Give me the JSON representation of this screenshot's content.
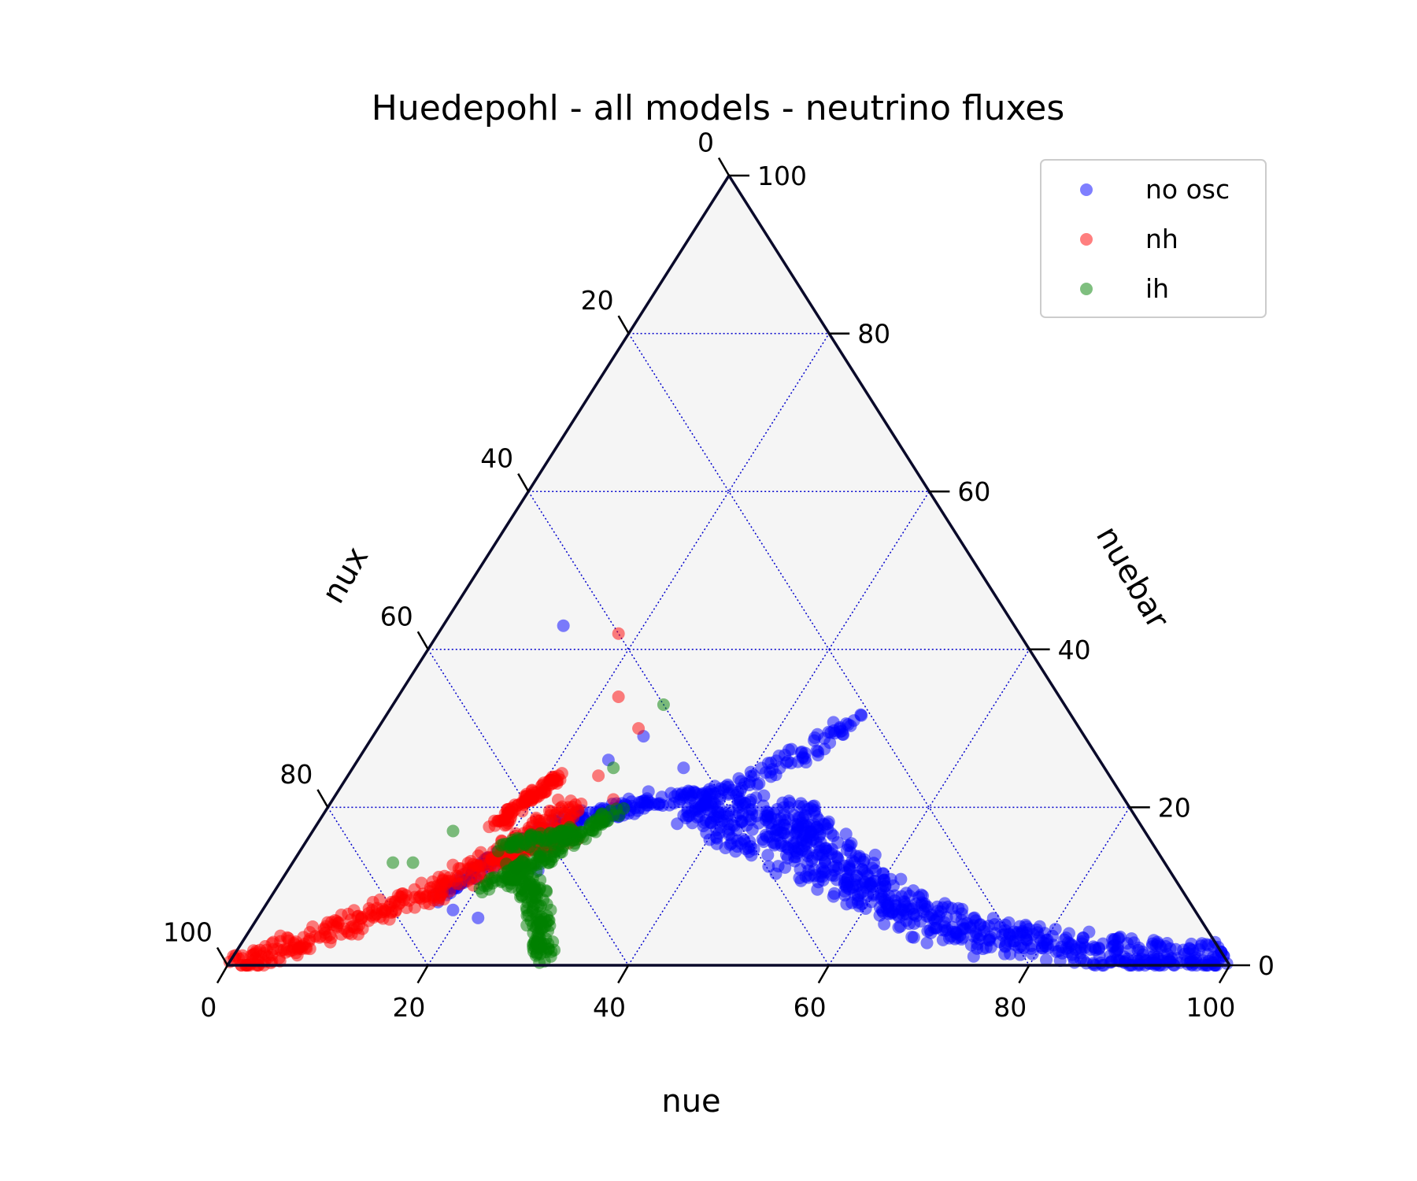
{
  "chart_data": {
    "type": "scatter",
    "subtype": "ternary",
    "title": "Huedepohl - all models - neutrino fluxes",
    "axes": {
      "bottom": {
        "label": "nue",
        "ticks": [
          "0",
          "20",
          "40",
          "60",
          "80",
          "100"
        ],
        "range": [
          0,
          100
        ]
      },
      "right": {
        "label": "nuebar",
        "ticks": [
          "0",
          "20",
          "40",
          "60",
          "80",
          "100"
        ],
        "range": [
          0,
          100
        ]
      },
      "left": {
        "label": "nux",
        "ticks": [
          "0",
          "20",
          "40",
          "60",
          "80",
          "100"
        ],
        "range": [
          0,
          100
        ]
      }
    },
    "grid": true,
    "grid_step": 20,
    "grid_color": "#0000cc",
    "background": "#f5f5f5",
    "legend": {
      "location": "top-right",
      "entries": [
        "no osc",
        "nh",
        "ih"
      ]
    },
    "series": [
      {
        "name": "no osc",
        "color": "#0000ff",
        "alpha": 0.5,
        "clusters": [
          {
            "kind": "band",
            "points": [
              [
                99,
                1,
                0
              ],
              [
                88,
                1,
                11
              ],
              [
                75,
                3,
                22
              ],
              [
                65,
                6,
                29
              ],
              [
                58,
                10,
                32
              ],
              [
                50,
                16,
                34
              ],
              [
                47,
                19,
                34
              ]
            ],
            "width": 4
          },
          {
            "kind": "band",
            "points": [
              [
                99,
                1,
                0
              ],
              [
                86,
                2,
                12
              ],
              [
                74,
                4,
                22
              ],
              [
                62,
                8,
                30
              ],
              [
                55,
                13,
                32
              ],
              [
                48,
                18,
                34
              ],
              [
                46,
                20,
                34
              ]
            ],
            "width": 3.5
          },
          {
            "kind": "band",
            "points": [
              [
                99,
                1,
                0
              ],
              [
                84,
                2,
                14
              ],
              [
                70,
                5,
                25
              ],
              [
                58,
                10,
                32
              ],
              [
                49,
                15,
                36
              ],
              [
                43,
                19,
                38
              ],
              [
                41,
                20,
                39
              ]
            ],
            "width": 3.5
          },
          {
            "kind": "band",
            "points": [
              [
                99,
                1,
                0
              ],
              [
                82,
                3,
                15
              ],
              [
                68,
                6,
                26
              ],
              [
                55,
                11,
                34
              ],
              [
                45,
                15,
                40
              ],
              [
                39,
                18,
                43
              ],
              [
                37,
                20,
                43
              ]
            ],
            "width": 3
          },
          {
            "kind": "band",
            "points": [
              [
                36,
                19,
                45
              ],
              [
                40,
                23,
                37
              ],
              [
                44,
                27,
                29
              ],
              [
                47,
                31,
                22
              ]
            ],
            "width": 2.5
          },
          {
            "kind": "band",
            "points": [
              [
                24,
                18,
                58
              ],
              [
                27,
                19,
                54
              ],
              [
                30,
                20,
                50
              ],
              [
                34,
                21,
                45
              ],
              [
                38,
                22,
                40
              ]
            ],
            "width": 2
          },
          {
            "kind": "band",
            "points": [
              [
                17,
                9,
                74
              ],
              [
                19,
                12,
                69
              ],
              [
                21,
                15,
                64
              ],
              [
                23,
                17,
                60
              ]
            ],
            "width": 1.5
          },
          {
            "kind": "band",
            "points": [
              [
                99,
                0.2,
                0.8
              ],
              [
                88,
                0.4,
                11.6
              ]
            ],
            "width": 1
          },
          {
            "kind": "points",
            "points": [
              [
                12,
                43,
                45
              ],
              [
                25,
                26,
                49
              ],
              [
                27,
                29,
                44
              ],
              [
                30,
                19,
                51
              ],
              [
                25,
                12,
                63
              ],
              [
                22,
                6,
                72
              ],
              [
                33,
                25,
                42
              ],
              [
                29,
                20,
                51
              ],
              [
                31,
                22,
                47
              ],
              [
                17,
                8,
                75
              ],
              [
                19,
                7,
                74
              ]
            ]
          }
        ]
      },
      {
        "name": "nh",
        "color": "#ff0000",
        "alpha": 0.5,
        "clusters": [
          {
            "kind": "band",
            "points": [
              [
                0.5,
                0.2,
                99.3
              ],
              [
                6,
                3,
                91
              ],
              [
                12,
                7,
                81
              ],
              [
                17,
                11,
                72
              ],
              [
                21,
                15,
                64
              ],
              [
                23,
                18,
                59
              ],
              [
                24,
                20,
                56
              ]
            ],
            "width": 3
          },
          {
            "kind": "band",
            "points": [
              [
                0.5,
                0.2,
                99.3
              ],
              [
                5,
                2,
                93
              ],
              [
                10,
                5,
                85
              ],
              [
                15,
                9,
                76
              ],
              [
                19,
                12,
                69
              ],
              [
                23,
                15,
                62
              ],
              [
                26,
                17,
                57
              ]
            ],
            "width": 3
          },
          {
            "kind": "band",
            "points": [
              [
                18,
                18,
                64
              ],
              [
                19,
                20,
                61
              ],
              [
                20,
                22,
                58
              ],
              [
                21,
                24,
                55
              ]
            ],
            "width": 1.5
          },
          {
            "kind": "band",
            "points": [
              [
                20,
                13,
                67
              ],
              [
                23,
                15,
                62
              ],
              [
                26,
                16,
                58
              ]
            ],
            "width": 1.5
          },
          {
            "kind": "points",
            "points": [
              [
                18,
                42,
                40
              ],
              [
                22,
                34,
                44
              ],
              [
                26,
                30,
                44
              ],
              [
                25,
                24,
                51
              ],
              [
                28,
                21,
                51
              ],
              [
                26,
                17,
                57
              ],
              [
                27,
                16,
                57
              ]
            ]
          }
        ]
      },
      {
        "name": "ih",
        "color": "#008000",
        "alpha": 0.5,
        "clusters": [
          {
            "kind": "band",
            "points": [
              [
                31,
                1,
                68
              ],
              [
                30,
                3,
                67
              ],
              [
                28,
                6,
                66
              ],
              [
                26,
                9,
                65
              ],
              [
                24,
                11,
                65
              ],
              [
                22,
                12,
                66
              ]
            ],
            "width": 2
          },
          {
            "kind": "band",
            "points": [
              [
                21,
                10,
                69
              ],
              [
                23,
                12,
                65
              ],
              [
                25,
                14,
                61
              ],
              [
                27,
                17,
                56
              ],
              [
                29,
                19,
                52
              ]
            ],
            "width": 2
          },
          {
            "kind": "band",
            "points": [
              [
                20,
                15,
                65
              ],
              [
                23,
                16,
                61
              ],
              [
                26,
                17,
                57
              ]
            ],
            "width": 1.5
          },
          {
            "kind": "points",
            "points": [
              [
                27,
                33,
                40
              ],
              [
                26,
                25,
                49
              ],
              [
                14,
                17,
                69
              ],
              [
                10,
                13,
                77
              ],
              [
                12,
                13,
                75
              ],
              [
                28,
                18,
                54
              ]
            ]
          }
        ]
      }
    ]
  }
}
